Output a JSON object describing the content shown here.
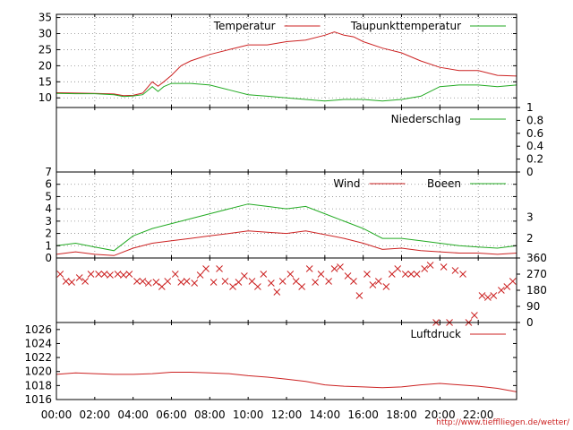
{
  "footer": {
    "url": "http://www.tiefflliegen.de/wetter/"
  },
  "colors": {
    "red": "#cc2222",
    "green": "#22aa22",
    "grid": "#888888",
    "frame": "#000000"
  },
  "chart_data": [
    {
      "type": "line",
      "panel": "temperature",
      "x_unit": "hours",
      "xlim": [
        0,
        24
      ],
      "ylim": [
        7,
        36
      ],
      "y_ticks": [
        10,
        15,
        20,
        25,
        30,
        35
      ],
      "grid": true,
      "legend_position": "top-right",
      "series": [
        {
          "name": "Temperatur",
          "color": "red",
          "x": [
            0,
            1,
            2,
            3,
            3.5,
            4,
            4.5,
            5,
            5.3,
            5.6,
            6,
            6.5,
            7,
            7.5,
            8,
            9,
            10,
            11,
            12,
            13,
            14,
            14.5,
            15,
            15.5,
            16,
            17,
            18,
            19,
            20,
            21,
            22,
            23,
            24
          ],
          "y": [
            11.6,
            11.5,
            11.4,
            11.2,
            10.7,
            10.8,
            11.5,
            15.0,
            13.6,
            15.0,
            17.0,
            20.0,
            21.5,
            22.5,
            23.5,
            25.0,
            26.5,
            26.5,
            27.5,
            28.0,
            29.5,
            30.5,
            29.5,
            29.0,
            27.5,
            25.5,
            24.0,
            21.5,
            19.5,
            18.5,
            18.5,
            17.0,
            16.8
          ]
        },
        {
          "name": "Taupunkttemperatur",
          "color": "green",
          "x": [
            0,
            1,
            2,
            3,
            3.5,
            4,
            4.5,
            5,
            5.3,
            5.6,
            6,
            7,
            8,
            9,
            10,
            11,
            12,
            13,
            14,
            15,
            16,
            17,
            18,
            19,
            19.5,
            20,
            21,
            22,
            23,
            24
          ],
          "y": [
            11.4,
            11.3,
            11.3,
            11.0,
            10.4,
            10.6,
            11.0,
            13.5,
            12.0,
            13.5,
            14.5,
            14.5,
            14.0,
            12.5,
            11.0,
            10.5,
            10.0,
            9.5,
            9.0,
            9.5,
            9.5,
            9.0,
            9.5,
            10.5,
            12.0,
            13.5,
            14.0,
            14.0,
            13.5,
            14.0
          ]
        }
      ]
    },
    {
      "type": "line",
      "panel": "precipitation",
      "xlim": [
        0,
        24
      ],
      "ylim": [
        0,
        1
      ],
      "y_ticks": [
        0,
        0.2,
        0.4,
        0.6,
        0.8,
        1
      ],
      "y_axis_side": "right",
      "grid": false,
      "legend_position": "top-right",
      "series": [
        {
          "name": "Niederschlag",
          "color": "green",
          "x": [
            0,
            24
          ],
          "y": [
            0,
            0
          ]
        }
      ]
    },
    {
      "type": "line",
      "panel": "wind",
      "xlim": [
        0,
        24
      ],
      "ylim": [
        0,
        7
      ],
      "y_ticks": [
        0,
        1,
        2,
        3,
        4,
        5,
        6,
        7
      ],
      "right_ticks": [
        {
          "label": "2",
          "value": 1.6
        },
        {
          "label": "3",
          "value": 3.3
        }
      ],
      "grid": true,
      "legend_position": "top-right",
      "series": [
        {
          "name": "Wind",
          "color": "red",
          "x": [
            0,
            1,
            2,
            3,
            4,
            5,
            6,
            7,
            8,
            9,
            10,
            11,
            12,
            13,
            14,
            15,
            16,
            17,
            18,
            19,
            20,
            21,
            22,
            23,
            24
          ],
          "y": [
            0.3,
            0.5,
            0.3,
            0.2,
            0.8,
            1.2,
            1.4,
            1.6,
            1.8,
            2.0,
            2.2,
            2.1,
            2.0,
            2.2,
            1.9,
            1.6,
            1.2,
            0.7,
            0.8,
            0.6,
            0.5,
            0.4,
            0.4,
            0.3,
            0.4
          ]
        },
        {
          "name": "Boeen",
          "color": "green",
          "x": [
            0,
            1,
            2,
            3,
            4,
            5,
            6,
            7,
            8,
            9,
            10,
            11,
            12,
            13,
            14,
            15,
            16,
            17,
            18,
            19,
            20,
            21,
            22,
            23,
            24
          ],
          "y": [
            1.0,
            1.2,
            0.9,
            0.6,
            1.8,
            2.4,
            2.8,
            3.2,
            3.6,
            4.0,
            4.4,
            4.2,
            4.0,
            4.2,
            3.6,
            3.0,
            2.4,
            1.6,
            1.6,
            1.4,
            1.2,
            1.0,
            0.9,
            0.8,
            1.0
          ]
        }
      ]
    },
    {
      "type": "scatter",
      "panel": "wind_direction",
      "xlim": [
        0,
        24
      ],
      "ylim": [
        0,
        360
      ],
      "y_ticks": [
        0,
        90,
        180,
        270,
        360
      ],
      "y_axis_side": "right",
      "marker": "x",
      "series": [
        {
          "name": "",
          "color": "red",
          "x": [
            0.2,
            0.5,
            0.8,
            1.2,
            1.5,
            1.8,
            2.2,
            2.5,
            2.8,
            3.2,
            3.5,
            3.8,
            4.2,
            4.5,
            4.8,
            5.2,
            5.5,
            5.8,
            6.2,
            6.5,
            6.8,
            7.2,
            7.5,
            7.8,
            8.2,
            8.5,
            8.8,
            9.2,
            9.5,
            9.8,
            10.2,
            10.5,
            10.8,
            11.2,
            11.5,
            11.8,
            12.2,
            12.5,
            12.8,
            13.2,
            13.5,
            13.8,
            14.2,
            14.5,
            14.8,
            15.2,
            15.5,
            15.8,
            16.2,
            16.5,
            16.8,
            17.2,
            17.5,
            17.8,
            18.2,
            18.5,
            18.8,
            19.2,
            19.5,
            19.8,
            20.2,
            20.5,
            20.8,
            21.2,
            21.5,
            21.8,
            22.2,
            22.5,
            22.8,
            23.2,
            23.5,
            23.8
          ],
          "y": [
            270,
            230,
            225,
            250,
            230,
            270,
            270,
            270,
            265,
            270,
            265,
            270,
            230,
            230,
            220,
            225,
            200,
            230,
            270,
            225,
            230,
            220,
            265,
            300,
            225,
            300,
            230,
            200,
            225,
            260,
            230,
            200,
            270,
            220,
            170,
            230,
            270,
            230,
            200,
            300,
            225,
            270,
            230,
            300,
            310,
            260,
            230,
            150,
            270,
            210,
            230,
            200,
            270,
            300,
            270,
            270,
            270,
            300,
            320,
            0,
            310,
            0,
            290,
            270,
            0,
            40,
            150,
            140,
            150,
            180,
            200,
            230
          ]
        }
      ]
    },
    {
      "type": "line",
      "panel": "pressure",
      "xlim": [
        0,
        24
      ],
      "ylim": [
        1016,
        1027
      ],
      "y_ticks": [
        1016,
        1018,
        1020,
        1022,
        1024,
        1026
      ],
      "x_ticks": [
        "00:00",
        "02:00",
        "04:00",
        "06:00",
        "08:00",
        "10:00",
        "12:00",
        "14:00",
        "16:00",
        "18:00",
        "20:00",
        "22:00"
      ],
      "grid": false,
      "legend_position": "top-right",
      "series": [
        {
          "name": "Luftdruck",
          "color": "red",
          "x": [
            0,
            1,
            2,
            3,
            4,
            5,
            6,
            7,
            8,
            9,
            10,
            11,
            12,
            13,
            14,
            15,
            16,
            17,
            18,
            19,
            20,
            21,
            22,
            23,
            24
          ],
          "y": [
            1019.6,
            1019.8,
            1019.7,
            1019.6,
            1019.6,
            1019.7,
            1019.9,
            1019.9,
            1019.8,
            1019.7,
            1019.4,
            1019.2,
            1018.9,
            1018.6,
            1018.1,
            1017.9,
            1017.8,
            1017.7,
            1017.8,
            1018.1,
            1018.3,
            1018.1,
            1017.9,
            1017.6,
            1017.1
          ]
        }
      ]
    }
  ]
}
